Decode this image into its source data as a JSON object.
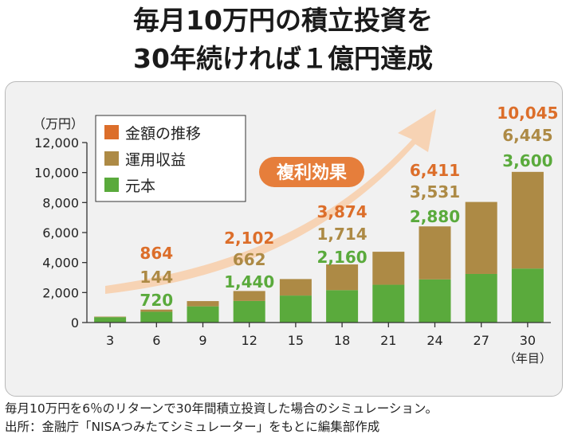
{
  "header": {
    "title_line1": "毎月10万円の積立投資を",
    "title_line2": "30年続ければ１億円達成"
  },
  "footer": {
    "note_line1": "毎月10万円を6％のリターンで30年間積立投資した場合のシミュレーション。",
    "note_line2": "出所：金融庁「NISAつみたてシミュレーター」をもとに編集部作成"
  },
  "chart_data": {
    "type": "bar",
    "stacked": true,
    "ylabel": "（万円）",
    "xlabel": "（年目）",
    "ylim": [
      0,
      12000
    ],
    "yticks": [
      0,
      2000,
      4000,
      6000,
      8000,
      10000,
      12000
    ],
    "ytick_labels": [
      "0",
      "2,000",
      "4,000",
      "6,000",
      "8,000",
      "10,000",
      "12,000"
    ],
    "categories": [
      "3",
      "6",
      "9",
      "12",
      "15",
      "18",
      "21",
      "24",
      "27",
      "30"
    ],
    "series": [
      {
        "name": "元本",
        "color": "#5aaa3c",
        "values": [
          360,
          720,
          1080,
          1440,
          1800,
          2160,
          2520,
          2880,
          3240,
          3600
        ]
      },
      {
        "name": "運用収益",
        "color": "#ad8a45",
        "values": [
          35,
          144,
          350,
          662,
          1100,
          1714,
          2200,
          3531,
          4800,
          6445
        ]
      }
    ],
    "totals_series_name": "金額の推移",
    "totals_color": "#dc6e2a",
    "legend": [
      {
        "label": "金額の推移",
        "color": "#dc6e2a"
      },
      {
        "label": "運用収益",
        "color": "#ad8a45"
      },
      {
        "label": "元本",
        "color": "#5aaa3c"
      }
    ],
    "legend_position": "top-left",
    "annotations": [
      {
        "category": "6",
        "total": "864",
        "gain": "144",
        "principal": "720"
      },
      {
        "category": "12",
        "total": "2,102",
        "gain": "662",
        "principal": "1,440"
      },
      {
        "category": "18",
        "total": "3,874",
        "gain": "1,714",
        "principal": "2,160"
      },
      {
        "category": "24",
        "total": "6,411",
        "gain": "3,531",
        "principal": "2,880"
      },
      {
        "category": "30",
        "total": "10,045",
        "gain": "6,445",
        "principal": "3,600"
      }
    ],
    "arrow_label": "複利効果",
    "arrow_color": "#f7d3b4",
    "badge_color": "#e67e3b"
  }
}
